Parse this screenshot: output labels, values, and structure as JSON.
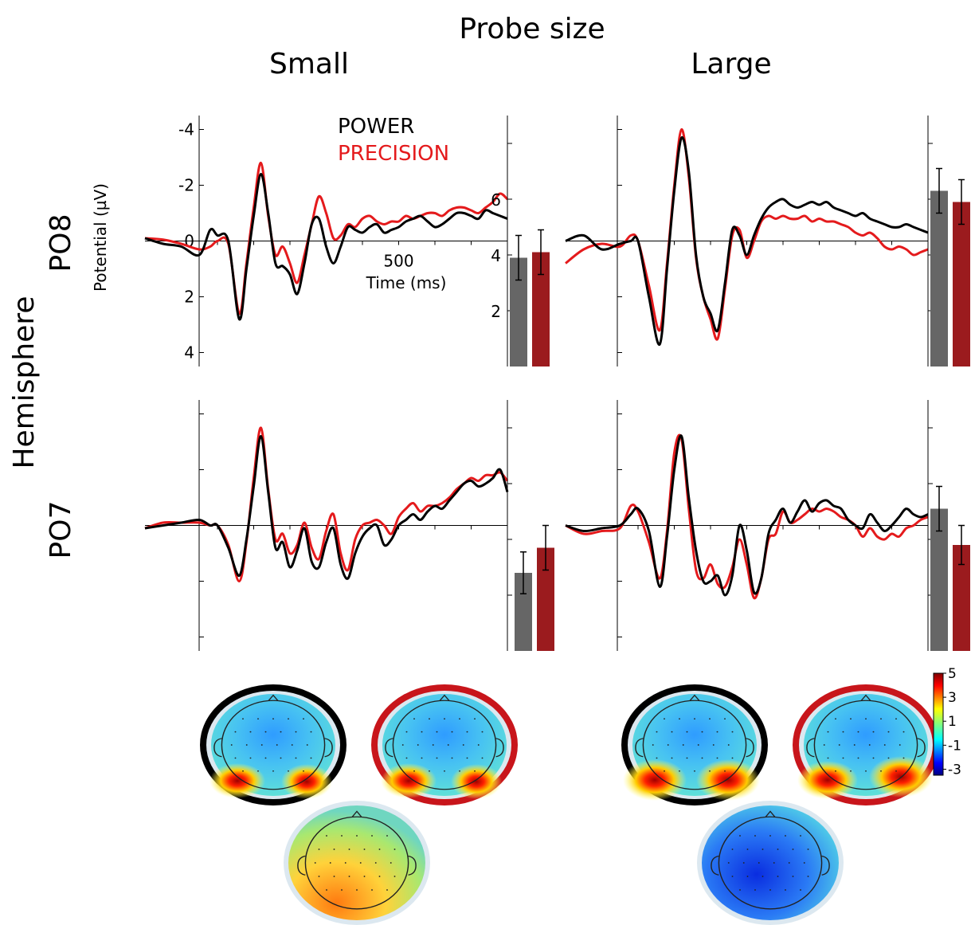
{
  "figure": {
    "column_group_title": "Probe size",
    "columns": [
      "Small",
      "Large"
    ],
    "row_group_title": "Hemisphere",
    "rows": [
      "PO8",
      "PO7"
    ],
    "ylabel": "Potential (µV)",
    "xlabel": "Time (ms)",
    "legend": [
      {
        "label": "POWER",
        "color": "#000000"
      },
      {
        "label": "PRECISION",
        "color": "#e41a1c"
      }
    ],
    "bar_colors": {
      "POWER": "#666666",
      "PRECISION": "#9b1b1e"
    },
    "y_inverted": true,
    "colorbar": {
      "ticks": [
        5,
        3,
        1,
        -1,
        -3
      ],
      "colormap": "jet"
    }
  },
  "chart_data": [
    {
      "type": "line",
      "panel": "Small-PO8",
      "ylim": [
        -4.5,
        4.5
      ],
      "yticks": [
        -4,
        -2,
        0,
        2,
        4
      ],
      "ytick_labels": [
        "-4",
        "-2",
        "0",
        "2",
        "4"
      ],
      "xlim": [
        -200,
        800
      ],
      "xticks": [
        500
      ],
      "xtick_labels": [
        "500"
      ],
      "x": [
        -200,
        -150,
        -100,
        -50,
        -20,
        0,
        30,
        60,
        80,
        100,
        120,
        140,
        160,
        180,
        200,
        220,
        240,
        260,
        280,
        300,
        320,
        340,
        360,
        380,
        400,
        420,
        440,
        460,
        480,
        500,
        520,
        540,
        560,
        580,
        600,
        620,
        640,
        660,
        680,
        700,
        720,
        740,
        760,
        780,
        800
      ],
      "series": [
        {
          "name": "POWER",
          "values": [
            -0.1,
            0.1,
            0.2,
            0.5,
            -0.4,
            -0.2,
            0.0,
            2.8,
            1.0,
            -0.9,
            -2.4,
            -1.0,
            0.8,
            0.9,
            1.2,
            1.9,
            0.8,
            -0.6,
            -0.8,
            0.2,
            0.8,
            0.2,
            -0.5,
            -0.4,
            -0.3,
            -0.5,
            -0.6,
            -0.3,
            -0.4,
            -0.5,
            -0.7,
            -0.8,
            -0.9,
            -0.7,
            -0.5,
            -0.6,
            -0.8,
            -1.0,
            -1.0,
            -0.9,
            -0.8,
            -1.1,
            -1.0,
            -0.9,
            -0.8
          ]
        },
        {
          "name": "PRECISION",
          "values": [
            -0.1,
            -0.05,
            0.1,
            0.3,
            0.2,
            0.0,
            0.1,
            2.6,
            0.8,
            -1.2,
            -2.8,
            -0.9,
            0.5,
            0.2,
            0.8,
            1.5,
            0.5,
            -0.6,
            -1.6,
            -1.0,
            -0.1,
            -0.2,
            -0.6,
            -0.5,
            -0.8,
            -0.9,
            -0.7,
            -0.6,
            -0.7,
            -0.7,
            -0.9,
            -0.8,
            -0.9,
            -1.0,
            -1.0,
            -0.9,
            -1.1,
            -1.2,
            -1.2,
            -1.1,
            -1.0,
            -1.2,
            -1.4,
            -1.7,
            -1.5
          ]
        }
      ]
    },
    {
      "type": "bar",
      "panel": "Small-PO8-bars",
      "categories": [
        "POWER",
        "PRECISION"
      ],
      "values": [
        3.9,
        4.1
      ],
      "errors": [
        0.8,
        0.8
      ],
      "ylim": [
        0,
        9
      ],
      "yticks": [
        2,
        4,
        6
      ],
      "ytick_labels": [
        "2",
        "4",
        "6"
      ]
    },
    {
      "type": "line",
      "panel": "Large-PO8",
      "ylim": [
        -4.5,
        4.5
      ],
      "xlim": [
        -200,
        800
      ],
      "x": [
        -200,
        -150,
        -100,
        -50,
        -20,
        0,
        30,
        60,
        80,
        100,
        120,
        140,
        160,
        180,
        200,
        220,
        240,
        260,
        280,
        300,
        320,
        340,
        360,
        380,
        400,
        420,
        440,
        460,
        480,
        500,
        520,
        540,
        560,
        580,
        600,
        620,
        640,
        660,
        680,
        700,
        720,
        740,
        760,
        780,
        800
      ],
      "series": [
        {
          "name": "POWER",
          "values": [
            0.0,
            -0.2,
            0.3,
            0.1,
            0.0,
            0.0,
            2.0,
            3.7,
            1.0,
            -1.8,
            -3.7,
            -2.5,
            0.5,
            2.0,
            2.6,
            3.2,
            1.5,
            -0.4,
            -0.2,
            0.5,
            -0.2,
            -0.8,
            -1.2,
            -1.4,
            -1.5,
            -1.3,
            -1.2,
            -1.3,
            -1.4,
            -1.3,
            -1.4,
            -1.2,
            -1.1,
            -1.0,
            -0.9,
            -1.0,
            -0.8,
            -0.7,
            -0.6,
            -0.5,
            -0.5,
            -0.6,
            -0.5,
            -0.4,
            -0.3
          ]
        },
        {
          "name": "PRECISION",
          "values": [
            0.8,
            0.3,
            0.1,
            0.2,
            -0.2,
            0.0,
            1.6,
            3.2,
            0.8,
            -2.0,
            -4.0,
            -2.3,
            0.6,
            2.0,
            2.8,
            3.5,
            1.7,
            -0.2,
            -0.4,
            0.6,
            0.0,
            -0.7,
            -0.9,
            -0.8,
            -0.9,
            -0.8,
            -0.8,
            -0.9,
            -0.7,
            -0.8,
            -0.7,
            -0.7,
            -0.6,
            -0.5,
            -0.3,
            -0.2,
            -0.3,
            -0.1,
            0.2,
            0.3,
            0.2,
            0.3,
            0.5,
            0.4,
            0.3
          ]
        }
      ]
    },
    {
      "type": "bar",
      "panel": "Large-PO8-bars",
      "categories": [
        "POWER",
        "PRECISION"
      ],
      "values": [
        6.3,
        5.9
      ],
      "errors": [
        0.8,
        0.8
      ],
      "ylim": [
        0,
        9
      ]
    },
    {
      "type": "line",
      "panel": "Small-PO7",
      "ylim": [
        -4.5,
        4.5
      ],
      "xlim": [
        -200,
        800
      ],
      "x": [
        -200,
        -150,
        -100,
        -50,
        -20,
        0,
        30,
        60,
        80,
        100,
        120,
        140,
        160,
        180,
        200,
        220,
        240,
        260,
        280,
        300,
        320,
        340,
        360,
        380,
        400,
        420,
        440,
        460,
        480,
        500,
        520,
        540,
        560,
        580,
        600,
        620,
        640,
        660,
        680,
        700,
        720,
        740,
        760,
        780,
        800
      ],
      "series": [
        {
          "name": "POWER",
          "values": [
            0.1,
            0.0,
            -0.1,
            -0.2,
            0.0,
            0.0,
            0.8,
            1.8,
            0.5,
            -1.4,
            -3.2,
            -1.2,
            0.8,
            0.6,
            1.5,
            0.9,
            0.1,
            1.3,
            1.5,
            0.6,
            0.1,
            1.4,
            1.9,
            1.0,
            0.4,
            0.1,
            0.0,
            0.7,
            0.5,
            0.0,
            -0.2,
            -0.4,
            -0.2,
            -0.5,
            -0.7,
            -0.6,
            -0.9,
            -1.2,
            -1.5,
            -1.6,
            -1.4,
            -1.5,
            -1.7,
            -2.0,
            -1.2
          ]
        },
        {
          "name": "PRECISION",
          "values": [
            0.1,
            -0.1,
            -0.1,
            -0.1,
            0.0,
            0.0,
            0.7,
            2.0,
            0.6,
            -1.7,
            -3.5,
            -1.3,
            0.5,
            0.3,
            1.0,
            0.7,
            -0.1,
            0.8,
            1.2,
            0.2,
            -0.4,
            1.0,
            1.6,
            0.5,
            0.0,
            -0.1,
            -0.2,
            0.0,
            0.3,
            -0.3,
            -0.6,
            -0.8,
            -0.5,
            -0.7,
            -0.7,
            -0.8,
            -1.0,
            -1.3,
            -1.5,
            -1.7,
            -1.6,
            -1.8,
            -1.8,
            -1.9,
            -1.6
          ]
        }
      ]
    },
    {
      "type": "bar",
      "panel": "Small-PO7-bars",
      "categories": [
        "POWER",
        "PRECISION"
      ],
      "values": [
        2.8,
        3.7
      ],
      "errors": [
        0.75,
        0.8
      ],
      "ylim": [
        0,
        9
      ]
    },
    {
      "type": "line",
      "panel": "Large-PO7",
      "ylim": [
        -4.5,
        4.5
      ],
      "xlim": [
        -200,
        800
      ],
      "x": [
        -200,
        -150,
        -100,
        -50,
        -20,
        0,
        30,
        60,
        80,
        100,
        120,
        140,
        160,
        180,
        200,
        220,
        240,
        260,
        280,
        300,
        320,
        340,
        360,
        380,
        400,
        420,
        440,
        460,
        480,
        500,
        520,
        540,
        560,
        580,
        600,
        620,
        640,
        660,
        680,
        700,
        720,
        740,
        760,
        780,
        800
      ],
      "series": [
        {
          "name": "POWER",
          "values": [
            0.0,
            0.2,
            0.1,
            0.0,
            -0.4,
            -0.6,
            0.2,
            2.2,
            0.4,
            -2.0,
            -3.2,
            -1.0,
            0.9,
            2.0,
            2.0,
            1.8,
            2.5,
            1.8,
            0.0,
            0.9,
            2.4,
            1.9,
            0.3,
            -0.2,
            -0.6,
            -0.1,
            -0.5,
            -0.9,
            -0.5,
            -0.8,
            -0.9,
            -0.7,
            -0.6,
            -0.2,
            0.0,
            0.1,
            -0.4,
            -0.1,
            0.2,
            0.0,
            -0.3,
            -0.6,
            -0.4,
            -0.3,
            -0.4
          ]
        },
        {
          "name": "PRECISION",
          "values": [
            0.0,
            0.3,
            0.2,
            0.1,
            -0.7,
            -0.5,
            0.6,
            1.9,
            0.2,
            -2.6,
            -3.1,
            -0.6,
            1.6,
            1.9,
            1.4,
            2.1,
            2.2,
            1.5,
            0.5,
            1.4,
            2.6,
            1.9,
            0.5,
            0.3,
            -0.5,
            -0.1,
            -0.2,
            -0.4,
            -0.6,
            -0.5,
            -0.6,
            -0.5,
            -0.3,
            -0.2,
            0.0,
            0.4,
            0.1,
            0.4,
            0.5,
            0.3,
            0.4,
            0.1,
            0.0,
            -0.2,
            -0.3
          ]
        }
      ]
    },
    {
      "type": "bar",
      "panel": "Large-PO7-bars",
      "categories": [
        "POWER",
        "PRECISION"
      ],
      "values": [
        5.1,
        3.8
      ],
      "errors": [
        0.8,
        0.7
      ],
      "ylim": [
        0,
        9
      ]
    }
  ]
}
